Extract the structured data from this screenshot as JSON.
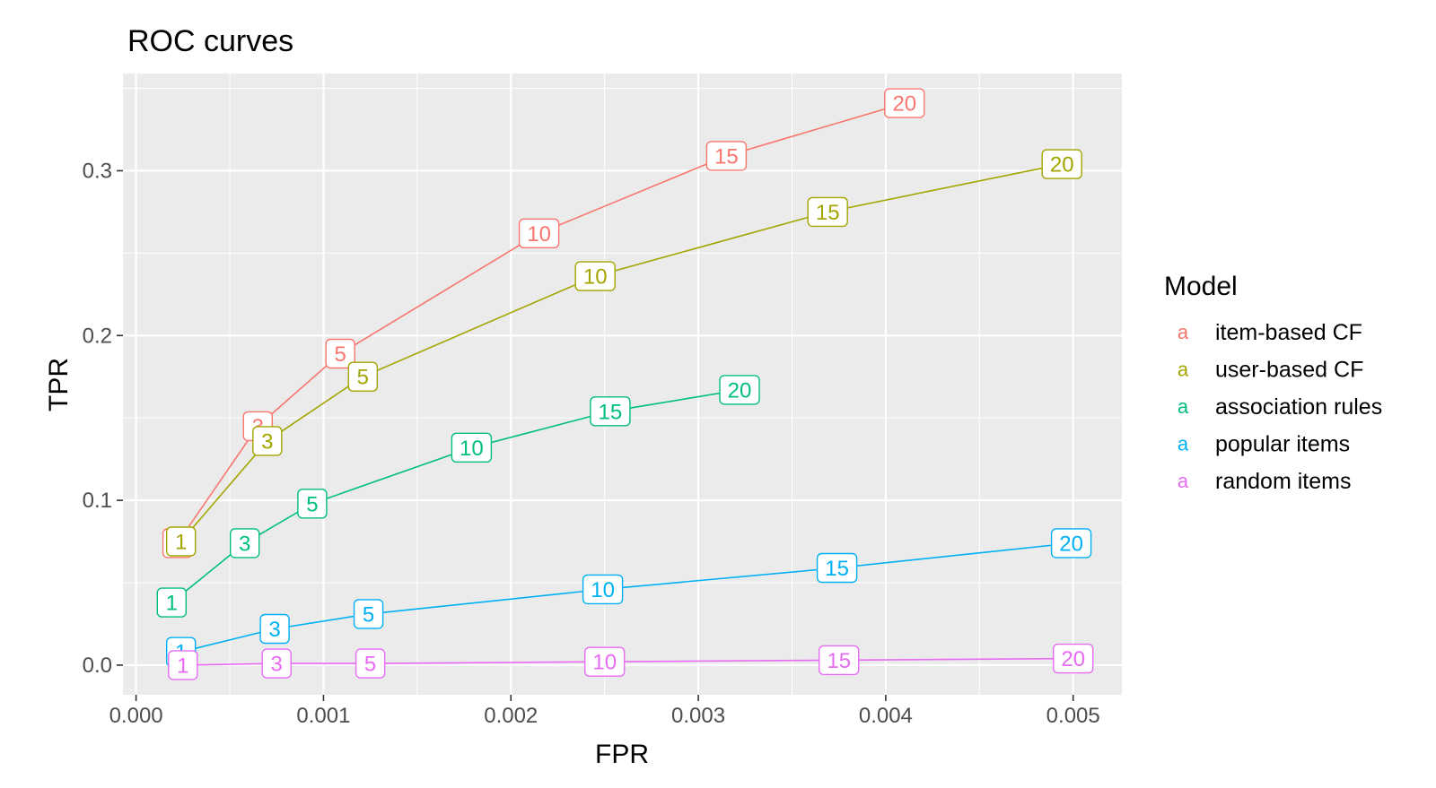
{
  "chart_data": {
    "type": "line",
    "title": "ROC curves",
    "xlabel": "FPR",
    "ylabel": "TPR",
    "xlim": [
      -7e-05,
      0.00526
    ],
    "ylim": [
      -0.018,
      0.359
    ],
    "x_ticks": [
      0.0,
      0.001,
      0.002,
      0.003,
      0.004,
      0.005
    ],
    "x_tick_labels": [
      "0.000",
      "0.001",
      "0.002",
      "0.003",
      "0.004",
      "0.005"
    ],
    "y_ticks": [
      0.0,
      0.1,
      0.2,
      0.3
    ],
    "y_tick_labels": [
      "0.0",
      "0.1",
      "0.2",
      "0.3"
    ],
    "grid": true,
    "legend": {
      "title": "Model",
      "placement": "right",
      "key_glyph": "a"
    },
    "series": [
      {
        "name": "item-based CF",
        "color": "#F8766D",
        "points": [
          {
            "x": 0.00022,
            "y": 0.074,
            "label": "1"
          },
          {
            "x": 0.00065,
            "y": 0.145,
            "label": "3"
          },
          {
            "x": 0.00109,
            "y": 0.189,
            "label": "5"
          },
          {
            "x": 0.00215,
            "y": 0.262,
            "label": "10"
          },
          {
            "x": 0.00315,
            "y": 0.309,
            "label": "15"
          },
          {
            "x": 0.0041,
            "y": 0.341,
            "label": "20"
          }
        ]
      },
      {
        "name": "user-based CF",
        "color": "#A3A500",
        "points": [
          {
            "x": 0.00024,
            "y": 0.075,
            "label": "1"
          },
          {
            "x": 0.0007,
            "y": 0.136,
            "label": "3"
          },
          {
            "x": 0.00121,
            "y": 0.175,
            "label": "5"
          },
          {
            "x": 0.00245,
            "y": 0.236,
            "label": "10"
          },
          {
            "x": 0.00369,
            "y": 0.275,
            "label": "15"
          },
          {
            "x": 0.00494,
            "y": 0.304,
            "label": "20"
          }
        ]
      },
      {
        "name": "association rules",
        "color": "#00BF7D",
        "points": [
          {
            "x": 0.00019,
            "y": 0.038,
            "label": "1"
          },
          {
            "x": 0.00058,
            "y": 0.074,
            "label": "3"
          },
          {
            "x": 0.00094,
            "y": 0.098,
            "label": "5"
          },
          {
            "x": 0.00179,
            "y": 0.132,
            "label": "10"
          },
          {
            "x": 0.00253,
            "y": 0.154,
            "label": "15"
          },
          {
            "x": 0.00322,
            "y": 0.167,
            "label": "20"
          }
        ]
      },
      {
        "name": "popular items",
        "color": "#00B0F6",
        "points": [
          {
            "x": 0.00024,
            "y": 0.008,
            "label": "1"
          },
          {
            "x": 0.00074,
            "y": 0.022,
            "label": "3"
          },
          {
            "x": 0.00124,
            "y": 0.031,
            "label": "5"
          },
          {
            "x": 0.00249,
            "y": 0.046,
            "label": "10"
          },
          {
            "x": 0.00374,
            "y": 0.059,
            "label": "15"
          },
          {
            "x": 0.00499,
            "y": 0.074,
            "label": "20"
          }
        ]
      },
      {
        "name": "random items",
        "color": "#E76BF3",
        "points": [
          {
            "x": 0.00025,
            "y": 0.0,
            "label": "1"
          },
          {
            "x": 0.00075,
            "y": 0.001,
            "label": "3"
          },
          {
            "x": 0.00125,
            "y": 0.001,
            "label": "5"
          },
          {
            "x": 0.0025,
            "y": 0.002,
            "label": "10"
          },
          {
            "x": 0.00375,
            "y": 0.003,
            "label": "15"
          },
          {
            "x": 0.005,
            "y": 0.004,
            "label": "20"
          }
        ]
      }
    ]
  }
}
